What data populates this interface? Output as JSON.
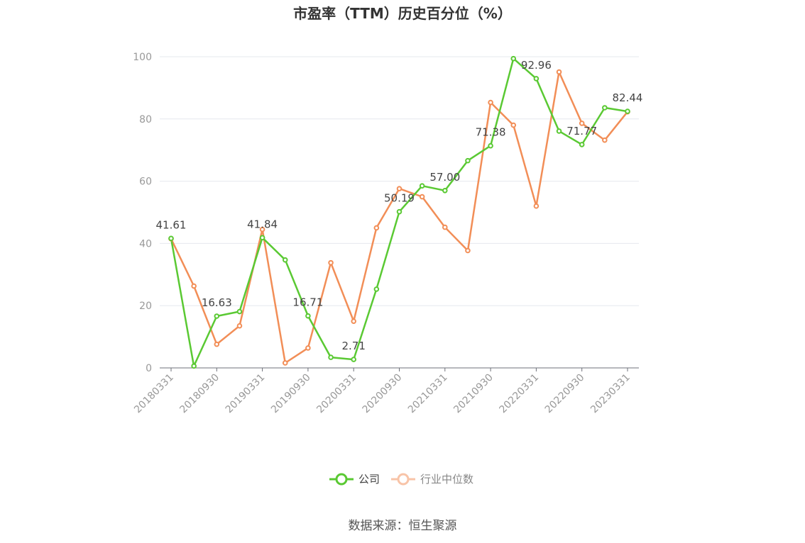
{
  "chart_data": {
    "type": "line",
    "title": "市盈率（TTM）历史百分位（%）",
    "xlabel": "",
    "ylabel": "",
    "ylim": [
      0,
      100
    ],
    "yticks": [
      "0",
      "20",
      "40",
      "60",
      "80",
      "100"
    ],
    "x": [
      "20180331",
      "20180630",
      "20180930",
      "20181231",
      "20190331",
      "20190630",
      "20190930",
      "20191231",
      "20200331",
      "20200630",
      "20200930",
      "20201231",
      "20210331",
      "20210630",
      "20210930",
      "20211231",
      "20220331",
      "20220630",
      "20220930",
      "20221231",
      "20230331"
    ],
    "xtick_labels": [
      "20180331",
      "20180930",
      "20190331",
      "20190930",
      "20200331",
      "20200930",
      "20210331",
      "20210930",
      "20220331",
      "20220930",
      "20230331"
    ],
    "grid": true,
    "legend_position": "bottom",
    "series": [
      {
        "name": "公司",
        "color": "#5ac933",
        "values": [
          41.61,
          0.6,
          16.63,
          18.1,
          41.84,
          34.7,
          16.71,
          3.4,
          2.71,
          25.3,
          50.19,
          58.5,
          57.0,
          66.6,
          71.38,
          99.4,
          92.96,
          76.1,
          71.77,
          83.6,
          82.44
        ]
      },
      {
        "name": "行业中位数",
        "color": "#f28e57",
        "values": [
          41.5,
          26.3,
          7.6,
          13.5,
          44.5,
          1.6,
          6.4,
          33.8,
          15.0,
          45.0,
          57.6,
          55.0,
          45.2,
          37.7,
          85.3,
          78.0,
          52.0,
          95.1,
          78.6,
          73.2,
          82.3
        ]
      }
    ],
    "data_labels": [
      {
        "index": 0,
        "text": "41.61"
      },
      {
        "index": 2,
        "text": "16.63"
      },
      {
        "index": 4,
        "text": "41.84"
      },
      {
        "index": 6,
        "text": "16.71"
      },
      {
        "index": 8,
        "text": "2.71"
      },
      {
        "index": 10,
        "text": "50.19"
      },
      {
        "index": 12,
        "text": "57.00"
      },
      {
        "index": 14,
        "text": "71.38"
      },
      {
        "index": 16,
        "text": "92.96"
      },
      {
        "index": 18,
        "text": "71.77"
      },
      {
        "index": 20,
        "text": "82.44"
      }
    ],
    "source": "数据来源：恒生聚源"
  }
}
